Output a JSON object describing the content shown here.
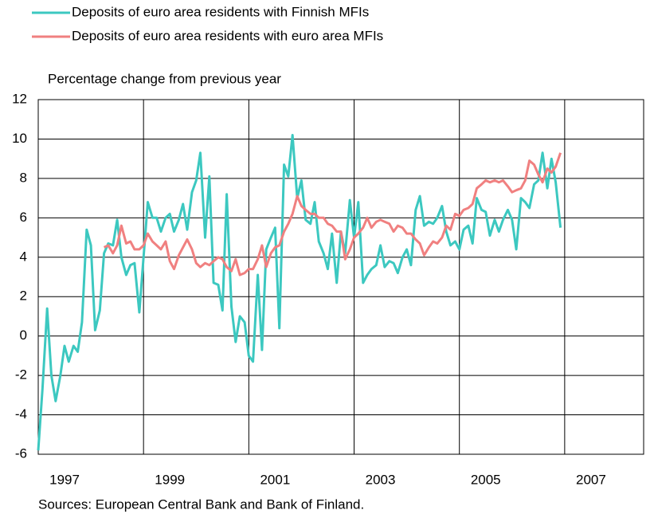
{
  "chart_data": {
    "type": "line",
    "subtitle": "Percentage change from previous year",
    "source": "Sources: European Central Bank and  Bank of Finland.",
    "xlim": [
      1997,
      2008.5
    ],
    "xticks": [
      {
        "value": 1997.5,
        "label": "1997"
      },
      {
        "value": 1999.5,
        "label": "1999"
      },
      {
        "value": 2001.5,
        "label": "2001"
      },
      {
        "value": 2003.5,
        "label": "2003"
      },
      {
        "value": 2005.5,
        "label": "2005"
      },
      {
        "value": 2007.5,
        "label": "2007"
      }
    ],
    "xgrid": [
      1999,
      2001,
      2003,
      2005,
      2007
    ],
    "ylim": [
      -6,
      12
    ],
    "yticks": [
      -6,
      -4,
      -2,
      0,
      2,
      4,
      6,
      8,
      10,
      12
    ],
    "grid": true,
    "series": [
      {
        "name": "Deposits of euro area residents with Finnish MFIs",
        "color": "#3cc8c0",
        "x": [
          1997.0,
          1997.08,
          1997.17,
          1997.25,
          1997.33,
          1997.42,
          1997.5,
          1997.58,
          1997.67,
          1997.75,
          1997.83,
          1997.92,
          1998.0,
          1998.08,
          1998.17,
          1998.25,
          1998.33,
          1998.42,
          1998.5,
          1998.58,
          1998.67,
          1998.75,
          1998.83,
          1998.92,
          1999.0,
          1999.08,
          1999.17,
          1999.25,
          1999.33,
          1999.42,
          1999.5,
          1999.58,
          1999.67,
          1999.75,
          1999.83,
          1999.92,
          2000.0,
          2000.08,
          2000.17,
          2000.25,
          2000.33,
          2000.42,
          2000.5,
          2000.58,
          2000.67,
          2000.75,
          2000.83,
          2000.92,
          2001.0,
          2001.08,
          2001.17,
          2001.25,
          2001.33,
          2001.42,
          2001.5,
          2001.58,
          2001.67,
          2001.75,
          2001.83,
          2001.92,
          2002.0,
          2002.08,
          2002.17,
          2002.25,
          2002.33,
          2002.42,
          2002.5,
          2002.58,
          2002.67,
          2002.75,
          2002.83,
          2002.92,
          2003.0,
          2003.08,
          2003.17,
          2003.25,
          2003.33,
          2003.42,
          2003.5,
          2003.58,
          2003.67,
          2003.75,
          2003.83,
          2003.92,
          2004.0,
          2004.08,
          2004.17,
          2004.25,
          2004.33,
          2004.42,
          2004.5,
          2004.58,
          2004.67,
          2004.75,
          2004.83,
          2004.92,
          2005.0,
          2005.08,
          2005.17,
          2005.25,
          2005.33,
          2005.42,
          2005.5,
          2005.58,
          2005.67,
          2005.75,
          2005.83,
          2005.92,
          2006.0,
          2006.08,
          2006.17,
          2006.25,
          2006.33,
          2006.42,
          2006.5,
          2006.58,
          2006.67,
          2006.75,
          2006.83,
          2006.92
        ],
        "values": [
          -5.8,
          -2.7,
          1.4,
          -2.0,
          -3.3,
          -2.0,
          -0.5,
          -1.3,
          -0.5,
          -0.8,
          0.7,
          5.4,
          4.6,
          0.3,
          1.3,
          4.2,
          4.7,
          4.6,
          5.9,
          4.0,
          3.1,
          3.6,
          3.7,
          1.2,
          4.0,
          6.8,
          6.0,
          6.0,
          5.3,
          6.0,
          6.2,
          5.3,
          5.9,
          6.7,
          5.4,
          7.3,
          7.9,
          9.3,
          5.0,
          8.1,
          2.7,
          2.6,
          1.3,
          7.2,
          1.5,
          -0.3,
          1.0,
          0.7,
          -1.0,
          -1.3,
          3.1,
          -0.7,
          4.4,
          5.0,
          5.5,
          0.4,
          8.7,
          8.1,
          10.2,
          7.0,
          7.9,
          5.9,
          5.7,
          6.8,
          4.8,
          4.2,
          3.4,
          5.2,
          2.7,
          5.3,
          4.2,
          6.9,
          5.0,
          6.8,
          2.7,
          3.1,
          3.4,
          3.6,
          4.6,
          3.5,
          3.8,
          3.7,
          3.2,
          4.0,
          4.4,
          3.6,
          6.4,
          7.1,
          5.6,
          5.8,
          5.7,
          6.0,
          6.6,
          5.3,
          4.6,
          4.8,
          4.4,
          5.4,
          5.6,
          4.7,
          7.0,
          6.4,
          6.3,
          5.1,
          5.9,
          5.3,
          5.9,
          6.4,
          5.9,
          4.4,
          7.0,
          6.8,
          6.5,
          7.7,
          7.9,
          9.3,
          7.5,
          9.0,
          7.8,
          5.5
        ]
      },
      {
        "name": "Deposits of euro area residents with euro area MFIs",
        "color": "#f08080",
        "x": [
          1998.25,
          1998.33,
          1998.42,
          1998.5,
          1998.58,
          1998.67,
          1998.75,
          1998.83,
          1998.92,
          1999.0,
          1999.08,
          1999.17,
          1999.25,
          1999.33,
          1999.42,
          1999.5,
          1999.58,
          1999.67,
          1999.75,
          1999.83,
          1999.92,
          2000.0,
          2000.08,
          2000.17,
          2000.25,
          2000.33,
          2000.42,
          2000.5,
          2000.58,
          2000.67,
          2000.75,
          2000.83,
          2000.92,
          2001.0,
          2001.08,
          2001.17,
          2001.25,
          2001.33,
          2001.42,
          2001.5,
          2001.58,
          2001.67,
          2001.75,
          2001.83,
          2001.92,
          2002.0,
          2002.08,
          2002.17,
          2002.25,
          2002.33,
          2002.42,
          2002.5,
          2002.58,
          2002.67,
          2002.75,
          2002.83,
          2002.92,
          2003.0,
          2003.08,
          2003.17,
          2003.25,
          2003.33,
          2003.42,
          2003.5,
          2003.58,
          2003.67,
          2003.75,
          2003.83,
          2003.92,
          2004.0,
          2004.08,
          2004.17,
          2004.25,
          2004.33,
          2004.42,
          2004.5,
          2004.58,
          2004.67,
          2004.75,
          2004.83,
          2004.92,
          2005.0,
          2005.08,
          2005.17,
          2005.25,
          2005.33,
          2005.42,
          2005.5,
          2005.58,
          2005.67,
          2005.75,
          2005.83,
          2005.92,
          2006.0,
          2006.08,
          2006.17,
          2006.25,
          2006.33,
          2006.42,
          2006.5,
          2006.58,
          2006.67,
          2006.75,
          2006.83,
          2006.92
        ],
        "values": [
          4.5,
          4.6,
          4.2,
          4.6,
          5.6,
          4.7,
          4.8,
          4.4,
          4.4,
          4.6,
          5.2,
          4.8,
          4.6,
          4.4,
          4.8,
          3.8,
          3.4,
          4.1,
          4.5,
          4.9,
          4.4,
          3.7,
          3.5,
          3.7,
          3.6,
          3.8,
          4.0,
          3.9,
          3.5,
          3.3,
          3.9,
          3.1,
          3.2,
          3.4,
          3.4,
          3.9,
          4.6,
          3.5,
          4.2,
          4.5,
          4.6,
          5.3,
          5.7,
          6.2,
          7.1,
          6.6,
          6.4,
          6.2,
          6.2,
          6.0,
          6.0,
          5.7,
          5.6,
          5.3,
          5.3,
          3.9,
          4.4,
          5.0,
          5.2,
          5.5,
          6.0,
          5.5,
          5.8,
          5.9,
          5.8,
          5.7,
          5.3,
          5.6,
          5.5,
          5.2,
          5.2,
          4.9,
          4.7,
          4.1,
          4.5,
          4.8,
          4.7,
          5.0,
          5.6,
          5.4,
          6.2,
          6.1,
          6.4,
          6.5,
          6.7,
          7.5,
          7.7,
          7.9,
          7.8,
          7.9,
          7.8,
          7.9,
          7.6,
          7.3,
          7.4,
          7.5,
          7.9,
          8.9,
          8.7,
          8.2,
          7.8,
          8.5,
          8.3,
          8.6,
          9.3
        ]
      }
    ]
  }
}
